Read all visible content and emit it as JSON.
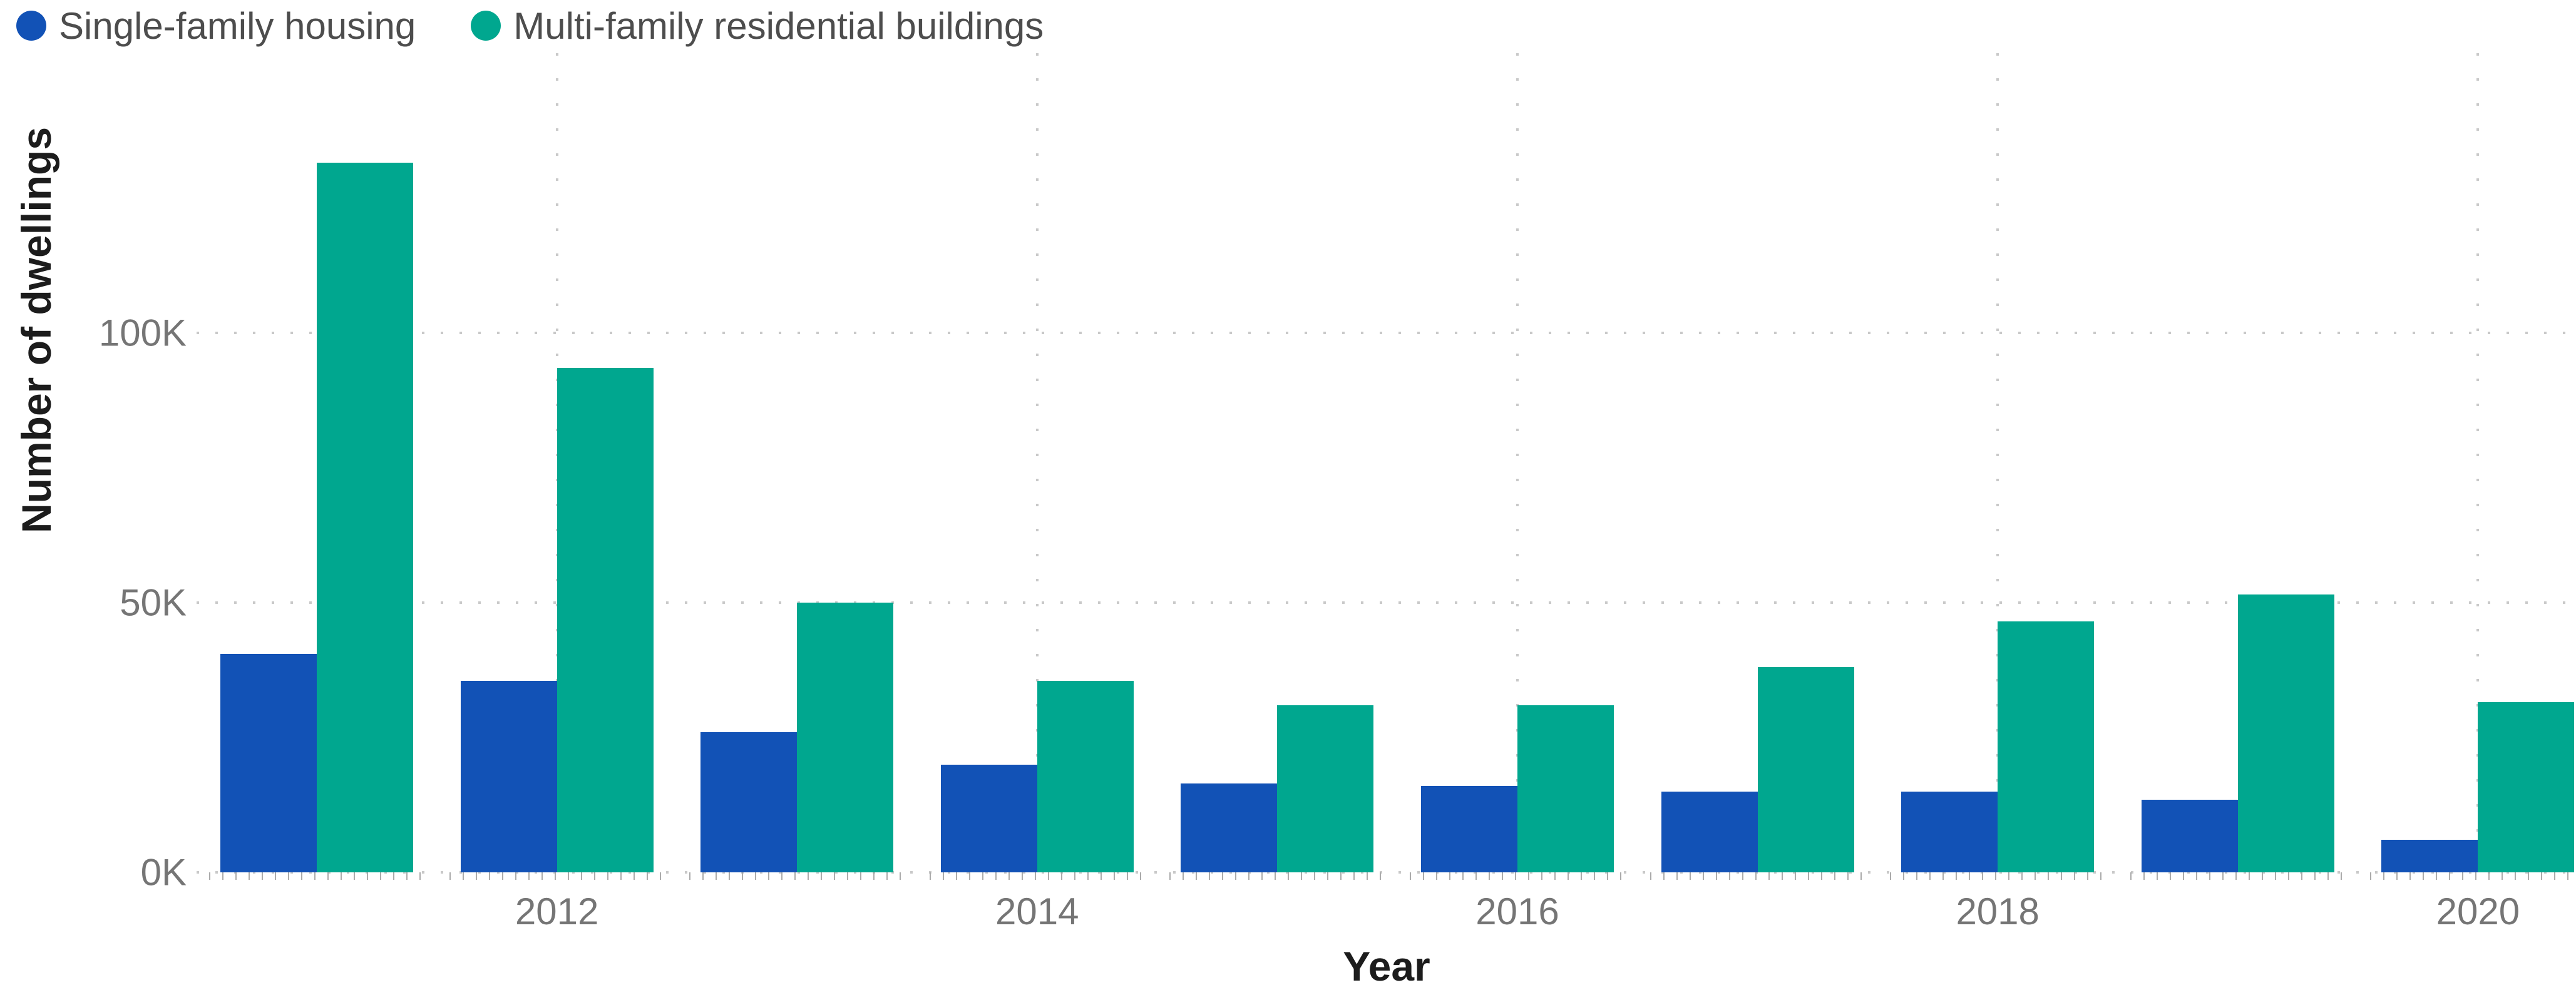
{
  "legend": {
    "items": [
      {
        "label": "Single-family housing",
        "color": "#1252B6"
      },
      {
        "label": "Multi-family residential buildings",
        "color": "#00A78F"
      }
    ]
  },
  "y_axis": {
    "title": "Number of dwellings",
    "tick_labels": [
      "0K",
      "50K",
      "100K"
    ]
  },
  "x_axis": {
    "title": "Year",
    "tick_labels": [
      "2012",
      "2014",
      "2016",
      "2018",
      "2020"
    ]
  },
  "chart_data": {
    "type": "bar",
    "unit": "thousands of dwellings",
    "categories": [
      2011,
      2012,
      2013,
      2014,
      2015,
      2016,
      2017,
      2018,
      2019,
      2020
    ],
    "series": [
      {
        "name": "Single-family housing",
        "color": "#1252B6",
        "values": [
          40.5,
          35.5,
          26,
          20,
          16.5,
          16,
          15,
          15,
          13.5,
          6
        ]
      },
      {
        "name": "Multi-family residential buildings",
        "color": "#00A78F",
        "values": [
          131.5,
          93.5,
          50,
          35.5,
          31,
          31,
          38,
          46.5,
          51.5,
          31.5
        ]
      }
    ],
    "xlabel": "Year",
    "ylabel": "Number of dwellings",
    "ylim": [
      0,
      153
    ],
    "y_ticks": [
      {
        "label": "0K",
        "value": 0
      },
      {
        "label": "50K",
        "value": 50
      },
      {
        "label": "100K",
        "value": 100
      }
    ],
    "x_ticks_shown": [
      2012,
      2014,
      2016,
      2018,
      2020
    ],
    "grid": "dotted",
    "legend_position": "top-left"
  }
}
